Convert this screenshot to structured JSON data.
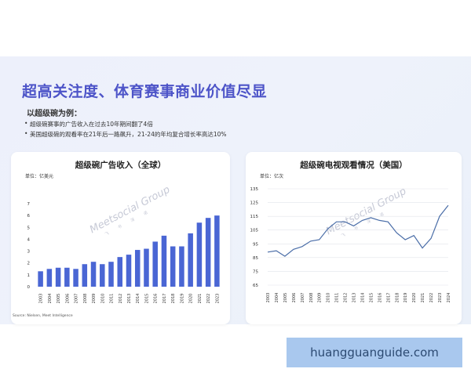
{
  "slide": {
    "title": "超高关注度、体育赛事商业价值尽显",
    "intro": "以超级碗为例：",
    "bullets": [
      "超级碗赛事的广告收入在过去10年期间翻了4倍",
      "美国超级碗的观看率在21年后一路飙升，21-24的年均复合增长率高达10%"
    ],
    "source": "Source: Nielsen, Meet Intelligence",
    "watermark_main": "Meetsocial Group",
    "watermark_sub": "飞 书 深 诺"
  },
  "footer": {
    "url": "huangguanguide.com"
  },
  "colors": {
    "title": "#4d54c8",
    "bar": "#4a66d4",
    "line": "#4b6ea8"
  },
  "chart_data": [
    {
      "type": "bar",
      "title": "超级碗广告收入（全球）",
      "unit": "单位：亿美元",
      "categories": [
        "2003",
        "2004",
        "2005",
        "2006",
        "2007",
        "2008",
        "2009",
        "2010",
        "2011",
        "2012",
        "2013",
        "2014",
        "2015",
        "2016",
        "2017",
        "2018",
        "2019",
        "2020",
        "2021",
        "2022",
        "2023"
      ],
      "values": [
        1.3,
        1.5,
        1.6,
        1.6,
        1.5,
        1.9,
        2.1,
        1.9,
        2.1,
        2.5,
        2.7,
        3.1,
        3.2,
        3.8,
        4.3,
        3.4,
        3.4,
        4.5,
        5.4,
        5.8,
        6.0
      ],
      "yticks": [
        0,
        1,
        2,
        3,
        4,
        5,
        6,
        7
      ],
      "ylim": [
        0,
        7
      ],
      "grid": false
    },
    {
      "type": "line",
      "title": "超级碗电视观看情况（美国）",
      "unit": "单位：亿次",
      "x": [
        "2003",
        "2004",
        "2005",
        "2006",
        "2007",
        "2008",
        "2009",
        "2010",
        "2011",
        "2012",
        "2013",
        "2014",
        "2015",
        "2016",
        "2017",
        "2018",
        "2019",
        "2020",
        "2021",
        "2022",
        "2023",
        "2024"
      ],
      "y": [
        89,
        90,
        86,
        91,
        93,
        97,
        98,
        106,
        111,
        111,
        108,
        112,
        114,
        112,
        111,
        103,
        98,
        101,
        92,
        99,
        115,
        123
      ],
      "yticks": [
        65,
        75,
        85,
        95,
        105,
        115,
        125,
        135
      ],
      "ylim": [
        65,
        135
      ],
      "grid": true
    }
  ]
}
